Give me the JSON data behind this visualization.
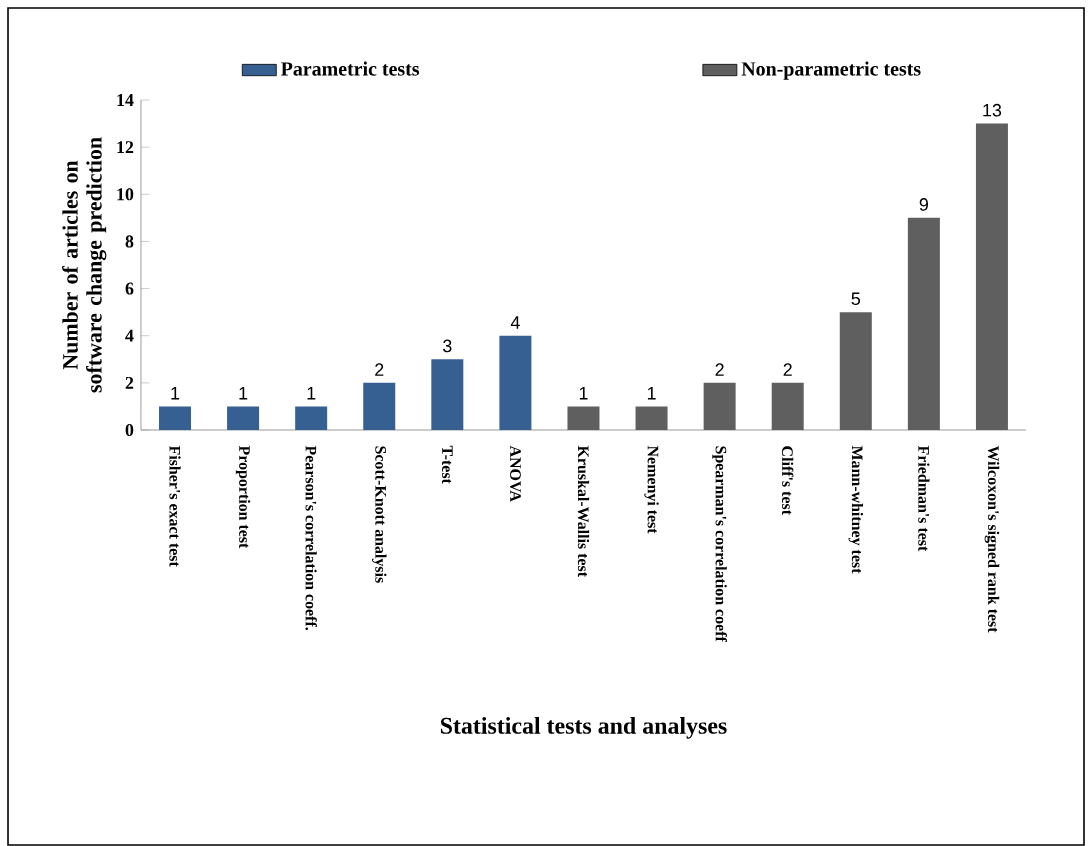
{
  "chart_data": {
    "type": "bar",
    "xlabel": "Statistical tests and analyses",
    "ylabel": "Number of articles on software change prediction",
    "categories": [
      "Fisher's exact test",
      "Proportion test",
      "Pearson's correlation coeff.",
      "Scott-Knott analysis",
      "T-test",
      "ANOVA",
      "Kruskal-Wallis test",
      "Nemenyi test",
      "Spearman's correlation coeff",
      "Cliff's test",
      "Mann-whitney test",
      "Friedman's test",
      "Wilcoxon's signed rank test"
    ],
    "series": [
      {
        "name": "Parametric tests",
        "color": "#376092",
        "values": [
          1,
          1,
          1,
          2,
          3,
          4,
          null,
          null,
          null,
          null,
          null,
          null,
          null
        ]
      },
      {
        "name": "Non-parametric tests",
        "color": "#5f5f5f",
        "values": [
          null,
          null,
          null,
          null,
          null,
          null,
          1,
          1,
          2,
          2,
          5,
          9,
          13
        ]
      }
    ],
    "ylim": [
      0,
      14
    ],
    "yticks": [
      0,
      2,
      4,
      6,
      8,
      10,
      12,
      14
    ],
    "data_labels": true,
    "legend": "top",
    "grid": false
  }
}
